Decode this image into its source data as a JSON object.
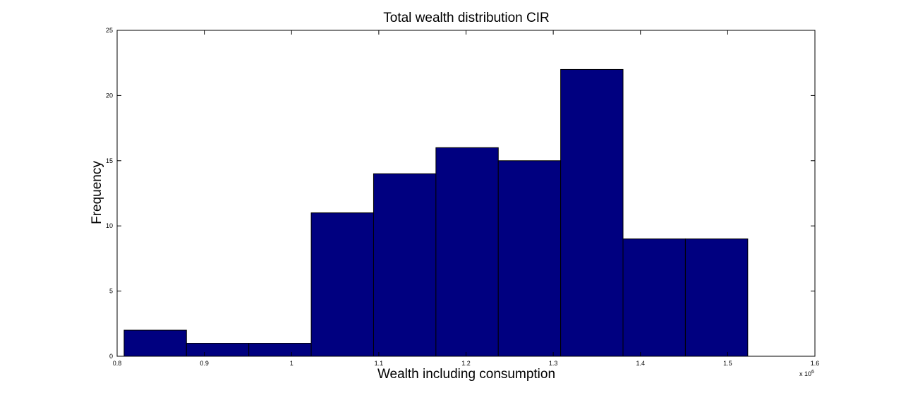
{
  "chart_data": {
    "type": "bar",
    "title": "Total wealth distribution CIR",
    "xlabel": "Wealth including consumption",
    "ylabel": "Frequency",
    "x_multiplier_label": "x 10",
    "x_multiplier_exponent": "6",
    "xlim": [
      0.8,
      1.6
    ],
    "ylim": [
      0,
      25
    ],
    "xticks": [
      0.8,
      0.9,
      1,
      1.1,
      1.2,
      1.3,
      1.4,
      1.5,
      1.6
    ],
    "xtick_labels": [
      "0.8",
      "0.9",
      "1",
      "1.1",
      "1.2",
      "1.3",
      "1.4",
      "1.5",
      "1.6"
    ],
    "yticks": [
      0,
      5,
      10,
      15,
      20,
      25
    ],
    "ytick_labels": [
      "0",
      "5",
      "10",
      "15",
      "20",
      "25"
    ],
    "bin_edges": [
      0.808,
      0.8795,
      0.951,
      1.0225,
      1.094,
      1.1655,
      1.237,
      1.3085,
      1.38,
      1.4515,
      1.523
    ],
    "values": [
      2,
      1,
      1,
      11,
      14,
      16,
      15,
      22,
      9,
      9
    ],
    "grid": false,
    "bar_color": "#000080"
  }
}
